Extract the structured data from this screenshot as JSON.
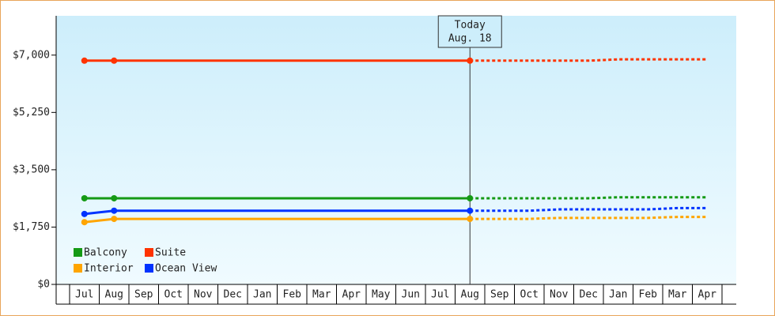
{
  "chart_data": {
    "type": "line",
    "categories": [
      "Jul",
      "Aug",
      "Sep",
      "Oct",
      "Nov",
      "Dec",
      "Jan",
      "Feb",
      "Mar",
      "Apr",
      "May",
      "Jun",
      "Jul",
      "Aug",
      "Sep",
      "Oct",
      "Nov",
      "Dec",
      "Jan",
      "Feb",
      "Mar",
      "Apr"
    ],
    "today": {
      "title": "Today",
      "date": "Aug. 18"
    },
    "ylim": [
      0,
      8200
    ],
    "yticks": [
      {
        "value": 0,
        "label": "$0"
      },
      {
        "value": 1750,
        "label": "$1,750"
      },
      {
        "value": 3500,
        "label": "$3,500"
      },
      {
        "value": 5250,
        "label": "$5,250"
      },
      {
        "value": 7000,
        "label": "$7,000"
      }
    ],
    "series": [
      {
        "name": "Balcony",
        "color": "#159a15",
        "values": [
          2630,
          2630,
          2630,
          2630,
          2630,
          2630,
          2630,
          2630,
          2630,
          2630,
          2630,
          2630,
          2630,
          2630,
          null,
          null,
          null,
          null,
          null,
          null,
          null,
          null
        ],
        "forecast": [
          null,
          null,
          null,
          null,
          null,
          null,
          null,
          null,
          null,
          null,
          null,
          null,
          null,
          2630,
          2630,
          2630,
          2630,
          2630,
          2660,
          2660,
          2660,
          2660
        ]
      },
      {
        "name": "Suite",
        "color": "#ff3300",
        "values": [
          6830,
          6830,
          6830,
          6830,
          6830,
          6830,
          6830,
          6830,
          6830,
          6830,
          6830,
          6830,
          6830,
          6830,
          null,
          null,
          null,
          null,
          null,
          null,
          null,
          null
        ],
        "forecast": [
          null,
          null,
          null,
          null,
          null,
          null,
          null,
          null,
          null,
          null,
          null,
          null,
          null,
          6830,
          6830,
          6830,
          6830,
          6830,
          6870,
          6870,
          6870,
          6870
        ]
      },
      {
        "name": "Interior",
        "color": "#ffa500",
        "values": [
          1900,
          2000,
          2000,
          2000,
          2000,
          2000,
          2000,
          2000,
          2000,
          2000,
          2000,
          2000,
          2000,
          2000,
          null,
          null,
          null,
          null,
          null,
          null,
          null,
          null
        ],
        "forecast": [
          null,
          null,
          null,
          null,
          null,
          null,
          null,
          null,
          null,
          null,
          null,
          null,
          null,
          2000,
          2000,
          2000,
          2030,
          2030,
          2030,
          2030,
          2060,
          2060
        ]
      },
      {
        "name": "Ocean View",
        "color": "#0033ff",
        "values": [
          2150,
          2250,
          2250,
          2250,
          2250,
          2250,
          2250,
          2250,
          2250,
          2250,
          2250,
          2250,
          2250,
          2250,
          null,
          null,
          null,
          null,
          null,
          null,
          null,
          null
        ],
        "forecast": [
          null,
          null,
          null,
          null,
          null,
          null,
          null,
          null,
          null,
          null,
          null,
          null,
          null,
          2250,
          2250,
          2250,
          2290,
          2290,
          2290,
          2290,
          2330,
          2330
        ]
      }
    ]
  }
}
